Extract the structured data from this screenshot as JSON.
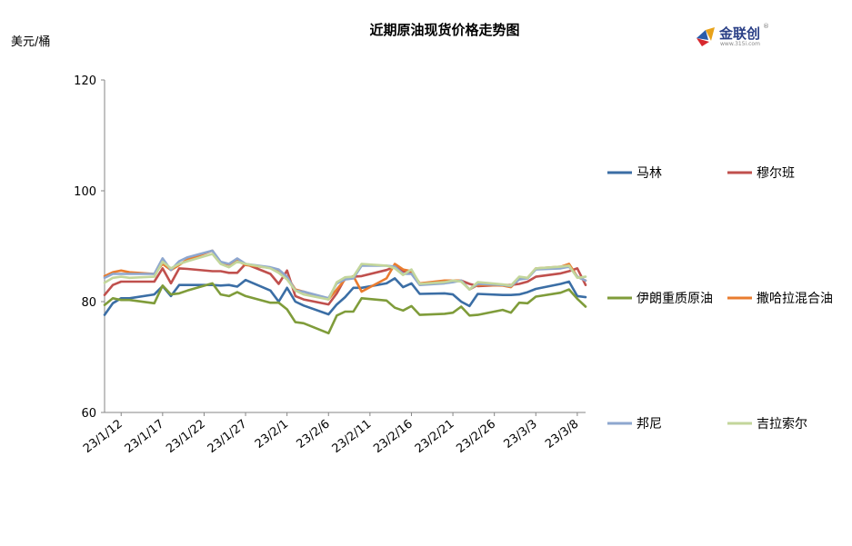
{
  "logo": {
    "text": "金联创",
    "subtext": "www.315i.com",
    "registered": "®"
  },
  "chart_data": {
    "type": "line",
    "title": "近期原油现货价格走势图",
    "ylabel": "美元/桶",
    "xlabel": "",
    "ylim": [
      60,
      120
    ],
    "yticks": [
      60,
      80,
      100,
      120
    ],
    "grid": false,
    "legend_position": "right",
    "x": [
      "2023-01-10",
      "2023-01-11",
      "2023-01-12",
      "2023-01-13",
      "2023-01-16",
      "2023-01-17",
      "2023-01-18",
      "2023-01-19",
      "2023-01-20",
      "2023-01-23",
      "2023-01-24",
      "2023-01-25",
      "2023-01-26",
      "2023-01-27",
      "2023-01-30",
      "2023-01-31",
      "2023-02-01",
      "2023-02-02",
      "2023-02-03",
      "2023-02-06",
      "2023-02-07",
      "2023-02-08",
      "2023-02-09",
      "2023-02-10",
      "2023-02-13",
      "2023-02-14",
      "2023-02-15",
      "2023-02-16",
      "2023-02-17",
      "2023-02-20",
      "2023-02-21",
      "2023-02-22",
      "2023-02-23",
      "2023-02-24",
      "2023-02-27",
      "2023-02-28",
      "2023-03-01",
      "2023-03-02",
      "2023-03-03",
      "2023-03-06",
      "2023-03-07",
      "2023-03-08",
      "2023-03-09"
    ],
    "xtick_labels": [
      {
        "date": "2023-01-12",
        "label": "23/1/12"
      },
      {
        "date": "2023-01-17",
        "label": "23/1/17"
      },
      {
        "date": "2023-01-22",
        "label": "23/1/22"
      },
      {
        "date": "2023-01-27",
        "label": "23/1/27"
      },
      {
        "date": "2023-02-01",
        "label": "23/2/1"
      },
      {
        "date": "2023-02-06",
        "label": "23/2/6"
      },
      {
        "date": "2023-02-11",
        "label": "23/2/11"
      },
      {
        "date": "2023-02-16",
        "label": "23/2/16"
      },
      {
        "date": "2023-02-21",
        "label": "23/2/21"
      },
      {
        "date": "2023-02-26",
        "label": "23/2/26"
      },
      {
        "date": "2023-03-03",
        "label": "23/3/3"
      },
      {
        "date": "2023-03-08",
        "label": "23/3/8"
      }
    ],
    "series": [
      {
        "name": "马林",
        "color": "#3b6ea5",
        "values": [
          77.6,
          79.7,
          80.6,
          80.6,
          81.3,
          82.8,
          81.0,
          83.0,
          83.0,
          83.0,
          82.9,
          83.0,
          82.7,
          83.9,
          82.0,
          80.0,
          82.5,
          80.0,
          79.3,
          77.7,
          79.5,
          80.8,
          82.5,
          82.5,
          83.3,
          84.2,
          82.6,
          83.3,
          81.4,
          81.5,
          81.3,
          80.0,
          79.2,
          81.4,
          81.2,
          81.2,
          81.3,
          81.7,
          82.3,
          83.2,
          83.6,
          81.0,
          80.8
        ]
      },
      {
        "name": "穆尔班",
        "color": "#c0504d",
        "values": [
          81.2,
          83.0,
          83.6,
          83.6,
          83.6,
          86.0,
          83.3,
          86.0,
          85.9,
          85.5,
          85.5,
          85.2,
          85.2,
          86.8,
          85.0,
          83.2,
          85.6,
          81.0,
          80.4,
          79.5,
          81.5,
          84.2,
          84.5,
          84.6,
          85.7,
          86.3,
          85.5,
          85.2,
          83.3,
          83.5,
          83.8,
          83.8,
          83.2,
          82.8,
          83.0,
          83.0,
          83.2,
          83.6,
          84.5,
          85.1,
          85.5,
          86.0,
          83.0
        ]
      },
      {
        "name": "伊朗重质原油",
        "color": "#7f9c3a",
        "values": [
          79.4,
          80.6,
          80.3,
          80.3,
          79.7,
          82.9,
          81.3,
          81.5,
          82.0,
          83.3,
          81.3,
          81.0,
          81.7,
          81.0,
          79.8,
          79.8,
          78.6,
          76.3,
          76.1,
          74.3,
          77.5,
          78.2,
          78.2,
          80.6,
          80.2,
          78.9,
          78.4,
          79.2,
          77.6,
          77.8,
          78.0,
          79.1,
          77.5,
          77.6,
          78.5,
          78.0,
          79.8,
          79.7,
          80.9,
          81.6,
          82.2,
          80.5,
          79.1
        ]
      },
      {
        "name": "撒哈拉混合油",
        "color": "#e97c2f",
        "values": [
          84.6,
          85.3,
          85.6,
          85.3,
          85.0,
          86.8,
          85.7,
          86.6,
          87.6,
          89.2,
          87.0,
          86.7,
          87.4,
          86.6,
          86.1,
          85.5,
          84.5,
          82.2,
          81.8,
          80.4,
          82.2,
          84.0,
          84.6,
          81.8,
          84.2,
          86.8,
          85.8,
          85.5,
          83.3,
          83.8,
          83.8,
          83.8,
          82.2,
          83.0,
          82.9,
          82.6,
          84.1,
          84.3,
          86.0,
          86.3,
          86.8,
          84.5,
          83.8
        ]
      },
      {
        "name": "邦尼",
        "color": "#8ea7cf",
        "values": [
          84.3,
          85.0,
          85.0,
          85.0,
          85.0,
          87.8,
          85.7,
          87.3,
          88.0,
          89.2,
          87.2,
          86.8,
          87.8,
          86.8,
          86.2,
          85.8,
          84.5,
          82.0,
          81.8,
          80.6,
          83.3,
          84.0,
          84.2,
          86.5,
          86.5,
          86.3,
          85.0,
          85.0,
          83.0,
          83.3,
          83.5,
          83.8,
          82.2,
          83.2,
          83.0,
          82.8,
          84.0,
          84.2,
          85.8,
          86.0,
          86.3,
          84.5,
          83.8
        ]
      },
      {
        "name": "吉拉索尔",
        "color": "#c3d69b",
        "values": [
          83.4,
          84.3,
          84.5,
          84.3,
          84.5,
          87.2,
          86.0,
          86.8,
          87.3,
          88.6,
          86.8,
          86.2,
          87.2,
          86.8,
          86.0,
          85.2,
          84.0,
          82.0,
          81.3,
          80.4,
          83.5,
          84.4,
          84.5,
          86.8,
          86.5,
          86.0,
          84.8,
          85.8,
          83.2,
          83.5,
          83.8,
          83.6,
          82.2,
          83.5,
          83.1,
          82.9,
          84.5,
          84.3,
          86.0,
          86.3,
          86.5,
          84.3,
          84.5
        ]
      }
    ]
  }
}
